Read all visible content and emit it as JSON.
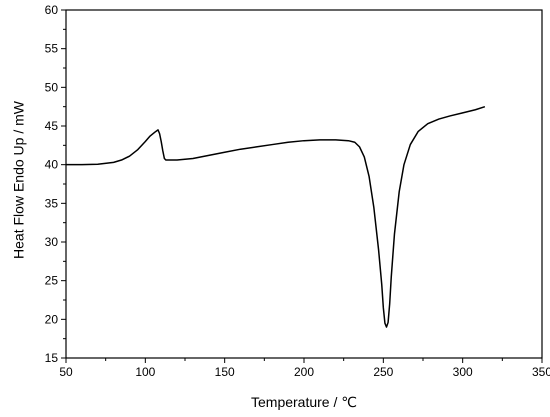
{
  "chart_data": {
    "type": "line",
    "title": "",
    "xlabel": "Temperature / ℃",
    "ylabel": "Heat Flow Endo Up / mW",
    "xlim": [
      50,
      350
    ],
    "ylim": [
      15,
      60
    ],
    "x_ticks": [
      50,
      100,
      150,
      200,
      250,
      300,
      350
    ],
    "y_ticks": [
      15,
      20,
      25,
      30,
      35,
      40,
      45,
      50,
      55,
      60
    ],
    "x_tick_labels": [
      "50",
      "100",
      "150",
      "200",
      "250",
      "300",
      "350"
    ],
    "y_tick_labels": [
      "15",
      "20",
      "25",
      "30",
      "35",
      "40",
      "45",
      "50",
      "55",
      "60"
    ],
    "grid": false,
    "legend": "none",
    "line_color": "#000000",
    "series": [
      {
        "points": [
          [
            50,
            40.0
          ],
          [
            60,
            40.0
          ],
          [
            70,
            40.05
          ],
          [
            80,
            40.3
          ],
          [
            85,
            40.6
          ],
          [
            90,
            41.1
          ],
          [
            95,
            41.9
          ],
          [
            100,
            43.0
          ],
          [
            103,
            43.7
          ],
          [
            106,
            44.2
          ],
          [
            108,
            44.5
          ],
          [
            109,
            44.0
          ],
          [
            110,
            43.0
          ],
          [
            111,
            41.8
          ],
          [
            112,
            40.8
          ],
          [
            113,
            40.6
          ],
          [
            120,
            40.6
          ],
          [
            130,
            40.8
          ],
          [
            140,
            41.2
          ],
          [
            150,
            41.6
          ],
          [
            160,
            42.0
          ],
          [
            170,
            42.3
          ],
          [
            180,
            42.6
          ],
          [
            190,
            42.9
          ],
          [
            200,
            43.1
          ],
          [
            210,
            43.2
          ],
          [
            220,
            43.2
          ],
          [
            228,
            43.1
          ],
          [
            232,
            42.9
          ],
          [
            235,
            42.3
          ],
          [
            238,
            41.0
          ],
          [
            241,
            38.5
          ],
          [
            244,
            34.5
          ],
          [
            247,
            29.0
          ],
          [
            249,
            24.5
          ],
          [
            250,
            21.5
          ],
          [
            251,
            19.5
          ],
          [
            252,
            19.0
          ],
          [
            253,
            19.6
          ],
          [
            254,
            22.0
          ],
          [
            255,
            25.5
          ],
          [
            257,
            31.0
          ],
          [
            260,
            36.5
          ],
          [
            263,
            40.0
          ],
          [
            267,
            42.6
          ],
          [
            272,
            44.3
          ],
          [
            278,
            45.3
          ],
          [
            285,
            45.9
          ],
          [
            292,
            46.3
          ],
          [
            300,
            46.7
          ],
          [
            308,
            47.1
          ],
          [
            314,
            47.5
          ]
        ]
      }
    ]
  }
}
